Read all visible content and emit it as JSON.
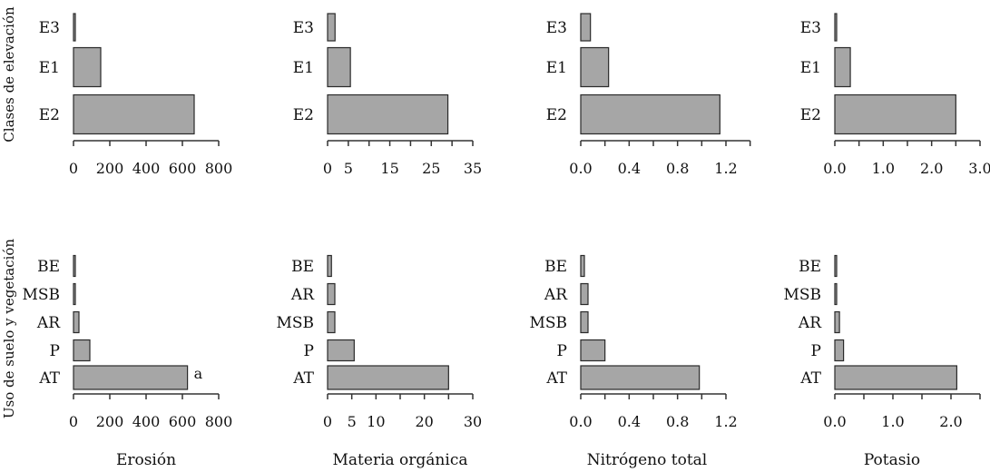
{
  "figure": {
    "row_labels": [
      "Clases de elevación",
      "Uso de suelo y vegetación"
    ],
    "column_labels": [
      "Erosión",
      "Materia orgánica",
      "Nitrógeno total",
      "Potasio"
    ]
  },
  "chart_data": [
    {
      "type": "bar",
      "orientation": "horizontal",
      "row": 0,
      "col": 0,
      "variable": "Erosión",
      "group": "Clases de elevación",
      "categories": [
        "E3",
        "E1",
        "E2"
      ],
      "values": [
        5,
        150,
        665
      ],
      "xlim": [
        0,
        800
      ],
      "xticks": [
        0,
        200,
        400,
        600,
        800
      ],
      "xtick_labels": [
        "0",
        "200",
        "400",
        "600",
        "800"
      ],
      "annotations": []
    },
    {
      "type": "bar",
      "orientation": "horizontal",
      "row": 0,
      "col": 1,
      "variable": "Materia orgánica",
      "group": "Clases de elevación",
      "categories": [
        "E3",
        "E1",
        "E2"
      ],
      "values": [
        1.8,
        5.5,
        29
      ],
      "xlim": [
        0,
        35
      ],
      "xticks": [
        0,
        5,
        10,
        15,
        20,
        25,
        30,
        35
      ],
      "xtick_labels": [
        "0",
        "5",
        "",
        "15",
        "",
        "25",
        "",
        "35"
      ],
      "annotations": []
    },
    {
      "type": "bar",
      "orientation": "horizontal",
      "row": 0,
      "col": 2,
      "variable": "Nitrógeno total",
      "group": "Clases de elevación",
      "categories": [
        "E3",
        "E1",
        "E2"
      ],
      "values": [
        0.08,
        0.23,
        1.15
      ],
      "xlim": [
        0,
        1.2
      ],
      "xticks": [
        0,
        0.2,
        0.4,
        0.6,
        0.8,
        1.0,
        1.2,
        1.4
      ],
      "xtick_labels": [
        "0.0",
        "",
        "0.4",
        "",
        "0.8",
        "",
        "1.2",
        ""
      ],
      "annotations": []
    },
    {
      "type": "bar",
      "orientation": "horizontal",
      "row": 0,
      "col": 3,
      "variable": "Potasio",
      "group": "Clases de elevación",
      "categories": [
        "E3",
        "E1",
        "E2"
      ],
      "values": [
        0.02,
        0.32,
        2.5
      ],
      "xlim": [
        0,
        3
      ],
      "xticks": [
        0,
        0.5,
        1,
        1.5,
        2,
        2.5,
        3
      ],
      "xtick_labels": [
        "0.0",
        "",
        "1.0",
        "",
        "2.0",
        "",
        "3.0"
      ],
      "annotations": []
    },
    {
      "type": "bar",
      "orientation": "horizontal",
      "row": 1,
      "col": 0,
      "variable": "Erosión",
      "group": "Uso de suelo y vegetación",
      "categories": [
        "BE",
        "MSB",
        "AR",
        "P",
        "AT"
      ],
      "values": [
        5,
        8,
        30,
        90,
        628
      ],
      "xlim": [
        0,
        800
      ],
      "xticks": [
        0,
        200,
        400,
        600,
        800
      ],
      "xtick_labels": [
        "0",
        "200",
        "400",
        "600",
        "800"
      ],
      "annotations": [
        {
          "category": "AT",
          "text": "a"
        }
      ]
    },
    {
      "type": "bar",
      "orientation": "horizontal",
      "row": 1,
      "col": 1,
      "variable": "Materia orgánica",
      "group": "Uso de suelo y vegetación",
      "categories": [
        "BE",
        "AR",
        "MSB",
        "P",
        "AT"
      ],
      "values": [
        0.8,
        1.5,
        1.5,
        5.5,
        25
      ],
      "xlim": [
        0,
        30
      ],
      "xticks": [
        0,
        5,
        10,
        15,
        20,
        25,
        30
      ],
      "xtick_labels": [
        "0",
        "5",
        "10",
        "",
        "20",
        "",
        "30"
      ],
      "annotations": []
    },
    {
      "type": "bar",
      "orientation": "horizontal",
      "row": 1,
      "col": 2,
      "variable": "Nitrógeno total",
      "group": "Uso de suelo y vegetación",
      "categories": [
        "BE",
        "AR",
        "MSB",
        "P",
        "AT"
      ],
      "values": [
        0.03,
        0.06,
        0.06,
        0.2,
        0.98
      ],
      "xlim": [
        0,
        1.2
      ],
      "xticks": [
        0,
        0.2,
        0.4,
        0.6,
        0.8,
        1.0,
        1.2
      ],
      "xtick_labels": [
        "0.0",
        "",
        "0.4",
        "",
        "0.8",
        "",
        "1.2"
      ],
      "annotations": []
    },
    {
      "type": "bar",
      "orientation": "horizontal",
      "row": 1,
      "col": 3,
      "variable": "Potasio",
      "group": "Uso de suelo y vegetación",
      "categories": [
        "BE",
        "MSB",
        "AR",
        "P",
        "AT"
      ],
      "values": [
        0.02,
        0.02,
        0.08,
        0.15,
        2.1
      ],
      "xlim": [
        0,
        2.5
      ],
      "xticks": [
        0,
        0.5,
        1,
        1.5,
        2,
        2.5
      ],
      "xtick_labels": [
        "0.0",
        "",
        "1.0",
        "",
        "2.0",
        ""
      ],
      "annotations": []
    }
  ]
}
